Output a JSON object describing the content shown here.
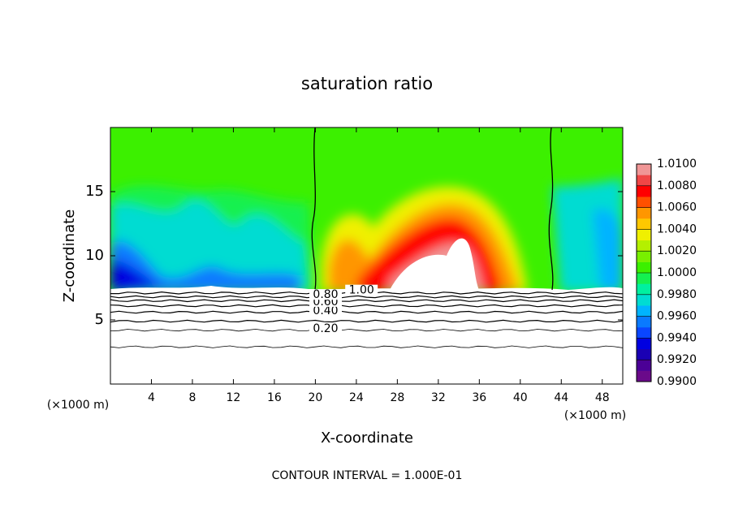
{
  "chart_data": {
    "type": "contour",
    "title": "saturation ratio",
    "x_label": "X-coordinate",
    "y_label": "Z-coordinate",
    "x_unit": "(×1000 m)",
    "footer": "CONTOUR INTERVAL = 1.000E-01",
    "xlim": [
      0,
      50
    ],
    "xticks": [
      4,
      8,
      12,
      16,
      20,
      24,
      28,
      32,
      36,
      40,
      44,
      48
    ],
    "ylim": [
      0,
      20
    ],
    "yticks": [
      5,
      10,
      15
    ],
    "contour_labels": [
      {
        "value": 0.2,
        "label": "0.20"
      },
      {
        "value": 0.4,
        "label": "0.40"
      },
      {
        "value": 0.6,
        "label": "0.60"
      },
      {
        "value": 0.8,
        "label": "0.80"
      },
      {
        "value": 1.0,
        "label": "1.00"
      }
    ],
    "colorbar": {
      "ticks": [
        {
          "value": 0.99,
          "label": "0.9900"
        },
        {
          "value": 0.992,
          "label": "0.9920"
        },
        {
          "value": 0.994,
          "label": "0.9940"
        },
        {
          "value": 0.996,
          "label": "0.9960"
        },
        {
          "value": 0.998,
          "label": "0.9980"
        },
        {
          "value": 1.0,
          "label": "1.0000"
        },
        {
          "value": 1.002,
          "label": "1.0020"
        },
        {
          "value": 1.004,
          "label": "1.0040"
        },
        {
          "value": 1.006,
          "label": "1.0060"
        },
        {
          "value": 1.008,
          "label": "1.0080"
        },
        {
          "value": 1.01,
          "label": "1.0100"
        }
      ],
      "colors": [
        "#6a0a8a",
        "#4b0096",
        "#1a00b4",
        "#0000e0",
        "#0a46ff",
        "#0a7aff",
        "#00b4ff",
        "#00dcd2",
        "#00f0a0",
        "#14f050",
        "#3cf000",
        "#78f000",
        "#b4f000",
        "#f0f000",
        "#ffc800",
        "#ff9600",
        "#ff5000",
        "#ff0000",
        "#f04646",
        "#f09696"
      ]
    }
  }
}
